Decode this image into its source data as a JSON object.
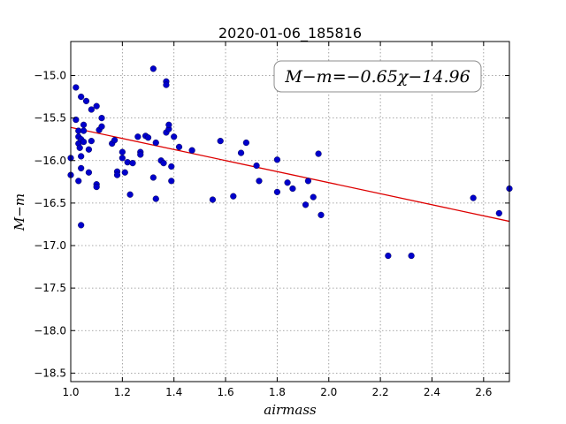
{
  "chart_data": {
    "type": "scatter",
    "title": "2020-01-06_185816",
    "xlabel": "airmass",
    "ylabel": "M−m",
    "xlim": [
      1.0,
      2.7
    ],
    "ylim": [
      -18.6,
      -14.6
    ],
    "y_inverted": true,
    "grid": true,
    "xticks": [
      1.0,
      1.2,
      1.4,
      1.6,
      1.8,
      2.0,
      2.2,
      2.4,
      2.6
    ],
    "xtick_labels": [
      "1.0",
      "1.2",
      "1.4",
      "1.6",
      "1.8",
      "2.0",
      "2.2",
      "2.4",
      "2.6"
    ],
    "yticks": [
      -15.0,
      -15.5,
      -16.0,
      -16.5,
      -17.0,
      -17.5,
      -18.0,
      -18.5
    ],
    "ytick_labels": [
      "−15.0",
      "−15.5",
      "−16.0",
      "−16.5",
      "−17.0",
      "−17.5",
      "−18.0",
      "−18.5"
    ],
    "marker_color": "#0000cc",
    "fit_color": "#dd0000",
    "fit": {
      "slope": -0.65,
      "intercept": -14.96,
      "label": "M−m=−0.65χ−14.96"
    },
    "points": [
      [
        1.0,
        -15.97
      ],
      [
        1.0,
        -16.17
      ],
      [
        1.02,
        -15.14
      ],
      [
        1.02,
        -15.52
      ],
      [
        1.03,
        -15.65
      ],
      [
        1.03,
        -15.72
      ],
      [
        1.03,
        -15.8
      ],
      [
        1.035,
        -15.85
      ],
      [
        1.03,
        -16.24
      ],
      [
        1.04,
        -15.25
      ],
      [
        1.04,
        -15.75
      ],
      [
        1.04,
        -15.95
      ],
      [
        1.04,
        -16.09
      ],
      [
        1.04,
        -16.76
      ],
      [
        1.05,
        -15.58
      ],
      [
        1.05,
        -15.65
      ],
      [
        1.05,
        -15.78
      ],
      [
        1.06,
        -15.3
      ],
      [
        1.07,
        -15.87
      ],
      [
        1.07,
        -16.14
      ],
      [
        1.08,
        -15.4
      ],
      [
        1.08,
        -15.77
      ],
      [
        1.1,
        -15.36
      ],
      [
        1.1,
        -16.28
      ],
      [
        1.1,
        -16.31
      ],
      [
        1.11,
        -15.64
      ],
      [
        1.12,
        -15.6
      ],
      [
        1.12,
        -15.5
      ],
      [
        1.16,
        -15.8
      ],
      [
        1.17,
        -15.76
      ],
      [
        1.18,
        -16.13
      ],
      [
        1.18,
        -16.17
      ],
      [
        1.2,
        -15.9
      ],
      [
        1.2,
        -15.97
      ],
      [
        1.21,
        -16.14
      ],
      [
        1.22,
        -16.02
      ],
      [
        1.23,
        -16.4
      ],
      [
        1.24,
        -16.03
      ],
      [
        1.26,
        -15.72
      ],
      [
        1.27,
        -15.9
      ],
      [
        1.27,
        -15.93
      ],
      [
        1.29,
        -15.71
      ],
      [
        1.3,
        -15.73
      ],
      [
        1.32,
        -14.92
      ],
      [
        1.32,
        -16.2
      ],
      [
        1.33,
        -15.79
      ],
      [
        1.33,
        -16.45
      ],
      [
        1.35,
        -16.0
      ],
      [
        1.36,
        -16.03
      ],
      [
        1.37,
        -15.07
      ],
      [
        1.37,
        -15.11
      ],
      [
        1.37,
        -15.67
      ],
      [
        1.38,
        -15.63
      ],
      [
        1.38,
        -15.58
      ],
      [
        1.39,
        -16.07
      ],
      [
        1.39,
        -16.24
      ],
      [
        1.4,
        -15.72
      ],
      [
        1.42,
        -15.84
      ],
      [
        1.47,
        -15.88
      ],
      [
        1.55,
        -16.46
      ],
      [
        1.58,
        -15.77
      ],
      [
        1.63,
        -16.42
      ],
      [
        1.66,
        -15.91
      ],
      [
        1.68,
        -15.79
      ],
      [
        1.72,
        -16.06
      ],
      [
        1.73,
        -16.24
      ],
      [
        1.8,
        -15.99
      ],
      [
        1.8,
        -16.37
      ],
      [
        1.84,
        -16.26
      ],
      [
        1.86,
        -16.33
      ],
      [
        1.91,
        -16.52
      ],
      [
        1.92,
        -16.24
      ],
      [
        1.94,
        -16.43
      ],
      [
        1.96,
        -15.92
      ],
      [
        1.97,
        -16.64
      ],
      [
        2.23,
        -17.12
      ],
      [
        2.32,
        -17.12
      ],
      [
        2.56,
        -16.44
      ],
      [
        2.66,
        -16.62
      ],
      [
        2.7,
        -16.33
      ]
    ]
  }
}
